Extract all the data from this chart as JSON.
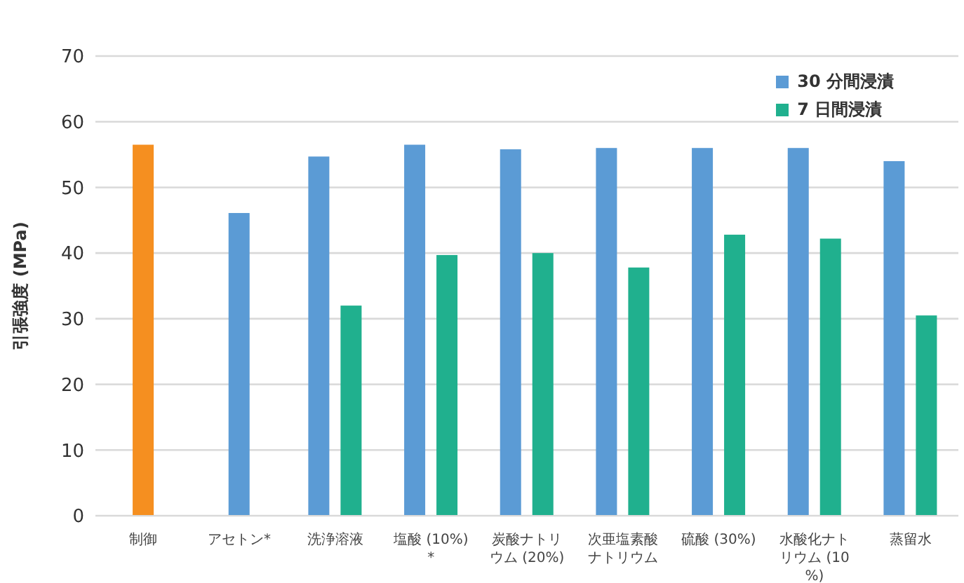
{
  "chart_data": {
    "type": "bar",
    "ylabel": "引張強度 (MPa)",
    "categories": [
      "制御",
      "アセトン*",
      "洗浄溶液",
      "塩酸 (10%)*",
      "炭酸ナトリウム (20%)",
      "次亜塩素酸ナトリウム",
      "硫酸 (30%)",
      "水酸化ナトリウム (10%)",
      "蒸留水"
    ],
    "series": [
      {
        "name": "30 分間浸漬",
        "color": "#5b9bd5",
        "colors": [
          "#f58f20",
          "#5b9bd5",
          "#5b9bd5",
          "#5b9bd5",
          "#5b9bd5",
          "#5b9bd5",
          "#5b9bd5",
          "#5b9bd5",
          "#5b9bd5"
        ],
        "values": [
          56.5,
          46.1,
          54.7,
          56.5,
          55.8,
          56.0,
          56.0,
          56.0,
          54.0
        ]
      },
      {
        "name": "7 日間浸漬",
        "color": "#20b08e",
        "values": [
          null,
          null,
          32.0,
          39.7,
          40.0,
          37.8,
          42.8,
          42.2,
          30.5
        ]
      }
    ],
    "ylim": [
      0,
      70
    ],
    "yticks": [
      0,
      10,
      20,
      30,
      40,
      50,
      60,
      70
    ],
    "grid": "y",
    "legend": "top right"
  }
}
